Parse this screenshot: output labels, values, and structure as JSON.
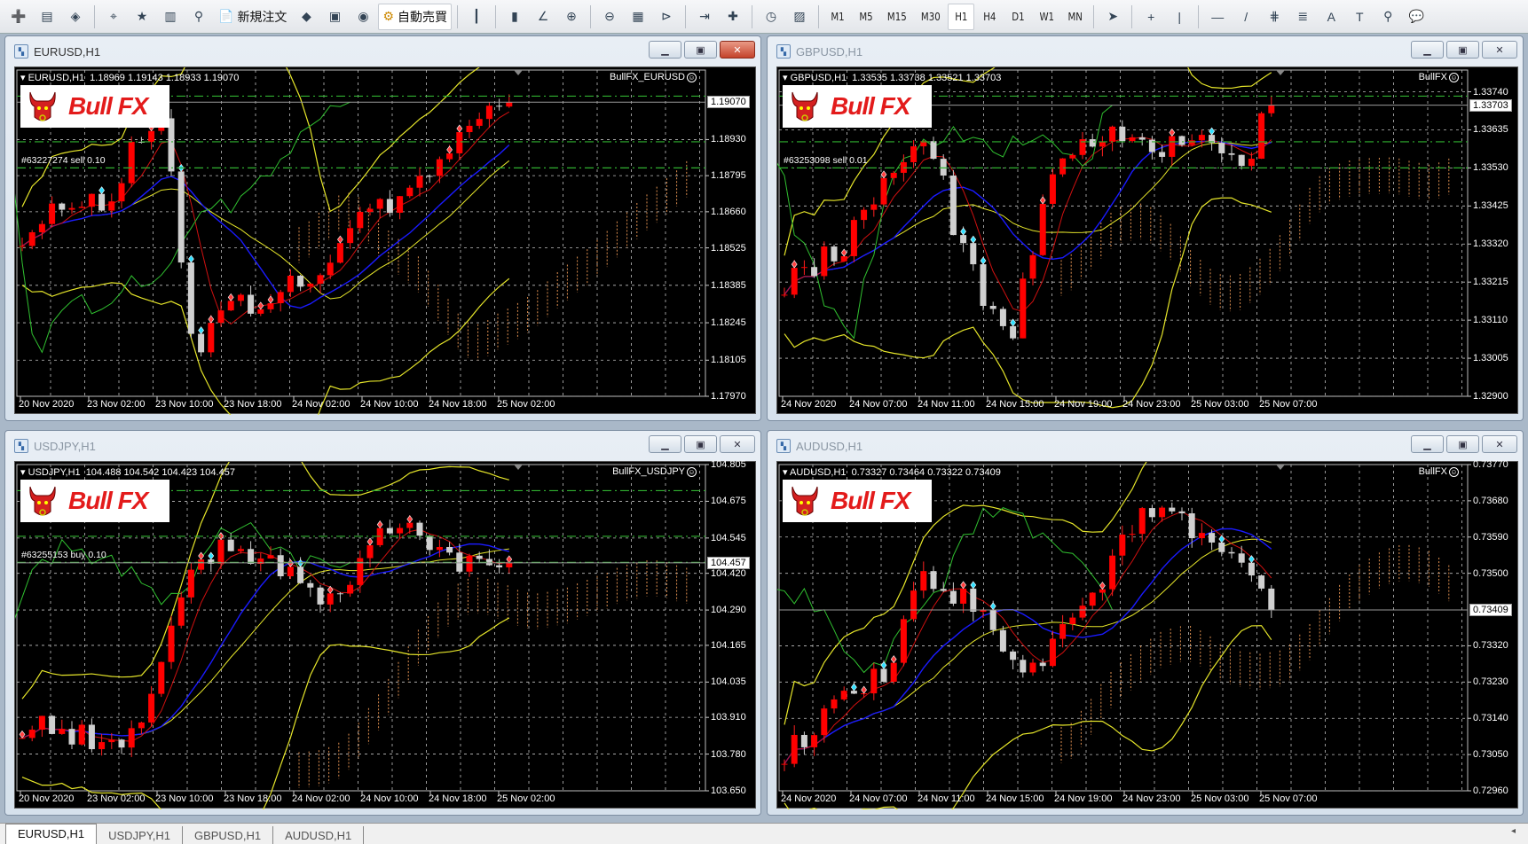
{
  "toolbar": {
    "new_order_label": "新規注文",
    "autotrading_label": "自動売買",
    "timeframes": [
      "M1",
      "M5",
      "M15",
      "M30",
      "H1",
      "H4",
      "D1",
      "W1",
      "MN"
    ],
    "active_timeframe": "H1",
    "icons": [
      "new-chart-icon",
      "profiles-icon",
      "market-watch-icon",
      "navigator-crosshair-icon",
      "favorites-icon",
      "terminal-icon",
      "strategy-tester-icon",
      "new-order-icon",
      "metaeditor-icon",
      "market-icon",
      "signals-icon",
      "autotrading-icon",
      "bar-chart-icon",
      "candlestick-icon",
      "line-chart-icon",
      "zoom-in-icon",
      "zoom-out-icon",
      "tile-windows-icon",
      "chart-shift-icon",
      "autoscroll-icon",
      "indicators-icon",
      "periods-icon",
      "templates-icon",
      "cursor-icon",
      "crosshair-icon",
      "vertical-line-icon",
      "horizontal-line-icon",
      "trendline-icon",
      "fibonacci-icon",
      "fibo-fan-icon",
      "text-icon",
      "text-label-icon",
      "search-icon",
      "chat-icon"
    ]
  },
  "charts": [
    {
      "window_title": "EURUSD,H1",
      "symbol": "EURUSD,H1",
      "open": "1.18969",
      "high": "1.19143",
      "low": "1.18933",
      "close": "1.19070",
      "ea_name": "BullFX_EURUSD",
      "order_label": "#63227274 sell 0.10",
      "current_price": "1.19070",
      "price_ticks": [
        "1.18930",
        "1.18795",
        "1.18660",
        "1.18525",
        "1.18385",
        "1.18245",
        "1.18105",
        "1.17970"
      ],
      "ylim": [
        1.1797,
        1.1919
      ],
      "time_labels": [
        "20 Nov 2020",
        "23 Nov 02:00",
        "23 Nov 10:00",
        "23 Nov 18:00",
        "24 Nov 02:00",
        "24 Nov 10:00",
        "24 Nov 18:00",
        "25 Nov 02:00"
      ],
      "active": true
    },
    {
      "window_title": "GBPUSD,H1",
      "symbol": "GBPUSD,H1",
      "open": "1.33535",
      "high": "1.33738",
      "low": "1.33521",
      "close": "1.33703",
      "ea_name": "BullFX",
      "order_label": "#63253098 sell 0.01",
      "current_price": "1.33703",
      "price_ticks": [
        "1.33740",
        "1.33635",
        "1.33530",
        "1.33425",
        "1.33320",
        "1.33215",
        "1.33110",
        "1.33005",
        "1.32900"
      ],
      "ylim": [
        1.329,
        1.338
      ],
      "time_labels": [
        "24 Nov 2020",
        "24 Nov 07:00",
        "24 Nov 11:00",
        "24 Nov 15:00",
        "24 Nov 19:00",
        "24 Nov 23:00",
        "25 Nov 03:00",
        "25 Nov 07:00"
      ],
      "active": false
    },
    {
      "window_title": "USDJPY,H1",
      "symbol": "USDJPY,H1",
      "open": "104.488",
      "high": "104.542",
      "low": "104.423",
      "close": "104.457",
      "ea_name": "BullFX_USDJPY",
      "order_label": "#63255153 buy 0.10",
      "current_price": "104.457",
      "price_ticks": [
        "104.805",
        "104.675",
        "104.545",
        "104.420",
        "104.290",
        "104.165",
        "104.035",
        "103.910",
        "103.780",
        "103.650"
      ],
      "ylim": [
        103.65,
        104.805
      ],
      "time_labels": [
        "20 Nov 2020",
        "23 Nov 02:00",
        "23 Nov 10:00",
        "23 Nov 18:00",
        "24 Nov 02:00",
        "24 Nov 10:00",
        "24 Nov 18:00",
        "25 Nov 02:00"
      ],
      "active": false
    },
    {
      "window_title": "AUDUSD,H1",
      "symbol": "AUDUSD,H1",
      "open": "0.73327",
      "high": "0.73464",
      "low": "0.73322",
      "close": "0.73409",
      "ea_name": "BullFX",
      "order_label": "",
      "current_price": "0.73409",
      "price_ticks": [
        "0.73770",
        "0.73680",
        "0.73590",
        "0.73500",
        "0.73320",
        "0.73230",
        "0.73140",
        "0.73050",
        "0.72960"
      ],
      "ylim": [
        0.7296,
        0.7377
      ],
      "time_labels": [
        "24 Nov 2020",
        "24 Nov 07:00",
        "24 Nov 11:00",
        "24 Nov 15:00",
        "24 Nov 19:00",
        "24 Nov 23:00",
        "25 Nov 03:00",
        "25 Nov 07:00"
      ],
      "active": false
    }
  ],
  "logo_text": "Bull FX",
  "tabs": [
    "EURUSD,H1",
    "USDJPY,H1",
    "GBPUSD,H1",
    "AUDUSD,H1"
  ],
  "active_tab": "EURUSD,H1",
  "colors": {
    "bull_candle": "#ff0000",
    "bear_candle": "#d0d0d0",
    "bands": "#e6e62a",
    "ma_fast": "#d01010",
    "ma_slow": "#1a1aff",
    "chikou": "#30c030",
    "cloud": "#e09050",
    "grid": "#c0c0c0",
    "order_line": "#30b030"
  }
}
